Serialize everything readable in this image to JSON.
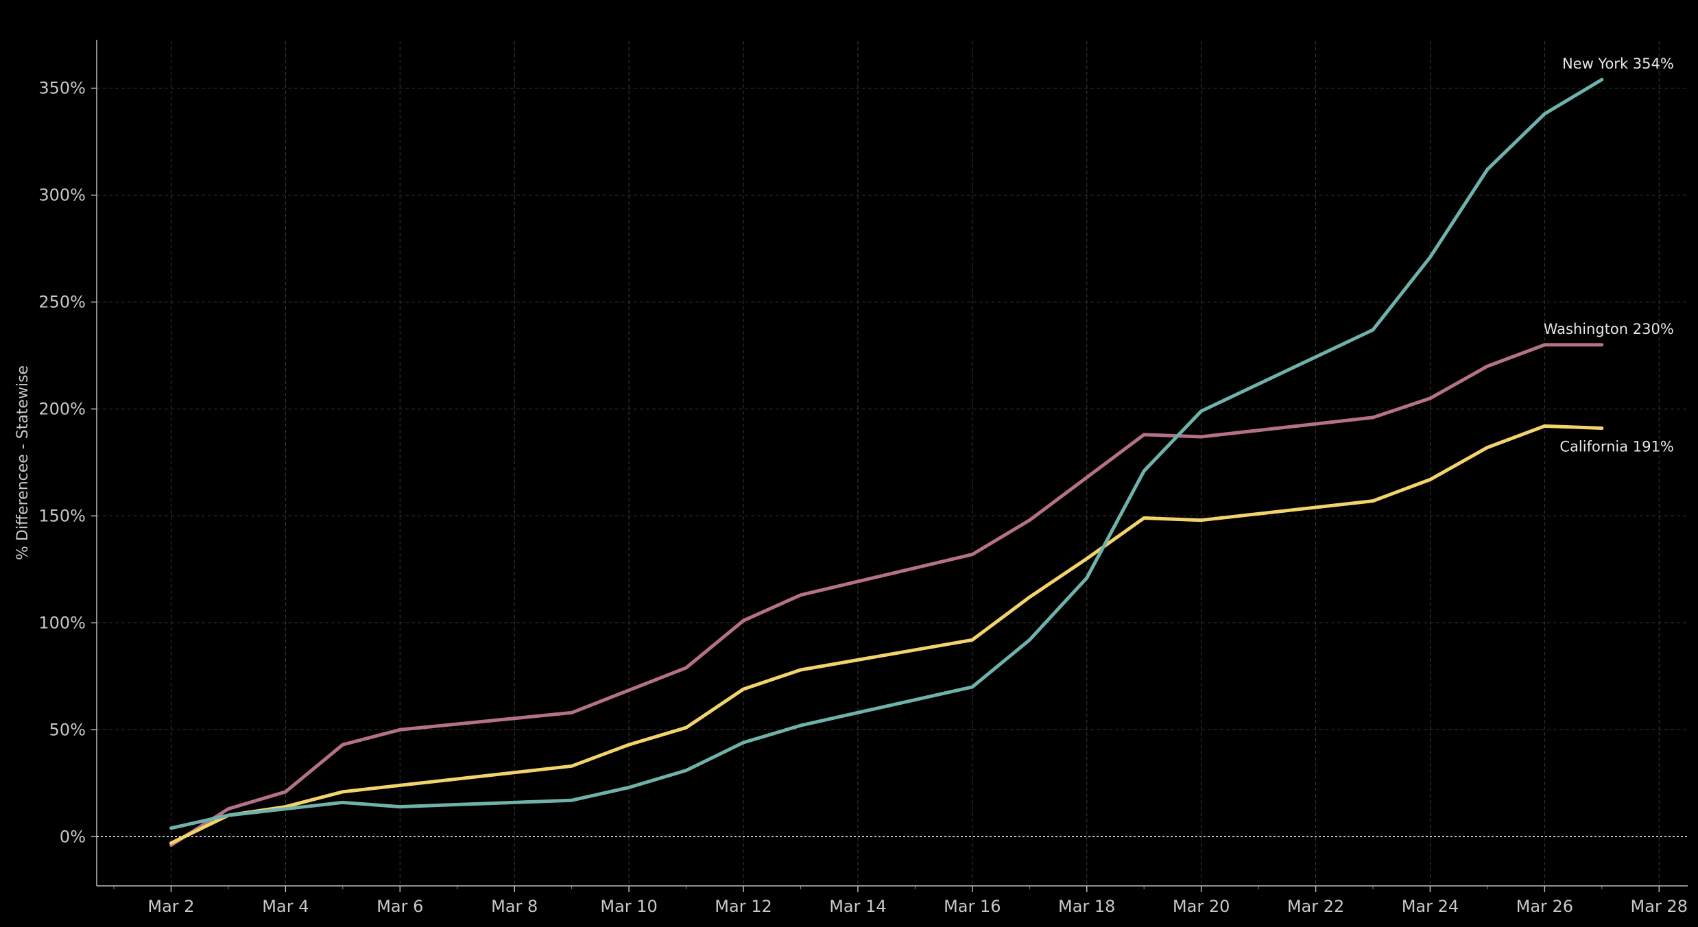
{
  "chart_data": {
    "type": "line",
    "xlabel": "",
    "ylabel": "% Differencee - Statewise",
    "x_ticks": [
      "Mar 2",
      "Mar 4",
      "Mar 6",
      "Mar 8",
      "Mar 10",
      "Mar 12",
      "Mar 14",
      "Mar 16",
      "Mar 18",
      "Mar 20",
      "Mar 22",
      "Mar 24",
      "Mar 26",
      "Mar 28"
    ],
    "y_ticks": [
      "0%",
      "50%",
      "100%",
      "150%",
      "200%",
      "250%",
      "300%",
      "350%"
    ],
    "xlim": [
      0.7,
      28.5
    ],
    "ylim": [
      -23,
      372
    ],
    "grid": true,
    "series": [
      {
        "name": "Washington",
        "color": "#b5708b",
        "end_label": "Washington 230%",
        "points": [
          [
            2,
            -4
          ],
          [
            3,
            13
          ],
          [
            4,
            21
          ],
          [
            5,
            43
          ],
          [
            6,
            50
          ],
          [
            9,
            58
          ],
          [
            11,
            79
          ],
          [
            12,
            101
          ],
          [
            13,
            113
          ],
          [
            16,
            132
          ],
          [
            17,
            148
          ],
          [
            19,
            188
          ],
          [
            20,
            187
          ],
          [
            23,
            196
          ],
          [
            24,
            205
          ],
          [
            25,
            220
          ],
          [
            26,
            230
          ],
          [
            27,
            230
          ]
        ]
      },
      {
        "name": "California",
        "color": "#f3d46b",
        "end_label": "California 191%",
        "points": [
          [
            2,
            -3
          ],
          [
            3,
            10
          ],
          [
            4,
            14
          ],
          [
            5,
            21
          ],
          [
            6,
            24
          ],
          [
            9,
            33
          ],
          [
            10,
            43
          ],
          [
            11,
            51
          ],
          [
            12,
            69
          ],
          [
            13,
            78
          ],
          [
            16,
            92
          ],
          [
            17,
            112
          ],
          [
            18,
            130
          ],
          [
            19,
            149
          ],
          [
            20,
            148
          ],
          [
            23,
            157
          ],
          [
            24,
            167
          ],
          [
            25,
            182
          ],
          [
            26,
            192
          ],
          [
            27,
            191
          ]
        ]
      },
      {
        "name": "New York",
        "color": "#6fb2ac",
        "end_label": "New York 354%",
        "points": [
          [
            2,
            4
          ],
          [
            3,
            10
          ],
          [
            4,
            13
          ],
          [
            5,
            16
          ],
          [
            6,
            14
          ],
          [
            9,
            17
          ],
          [
            10,
            23
          ],
          [
            11,
            31
          ],
          [
            12,
            44
          ],
          [
            13,
            52
          ],
          [
            16,
            70
          ],
          [
            17,
            92
          ],
          [
            18,
            121
          ],
          [
            19,
            171
          ],
          [
            20,
            199
          ],
          [
            23,
            237
          ],
          [
            24,
            271
          ],
          [
            25,
            312
          ],
          [
            26,
            338
          ],
          [
            27,
            354
          ]
        ]
      }
    ]
  }
}
